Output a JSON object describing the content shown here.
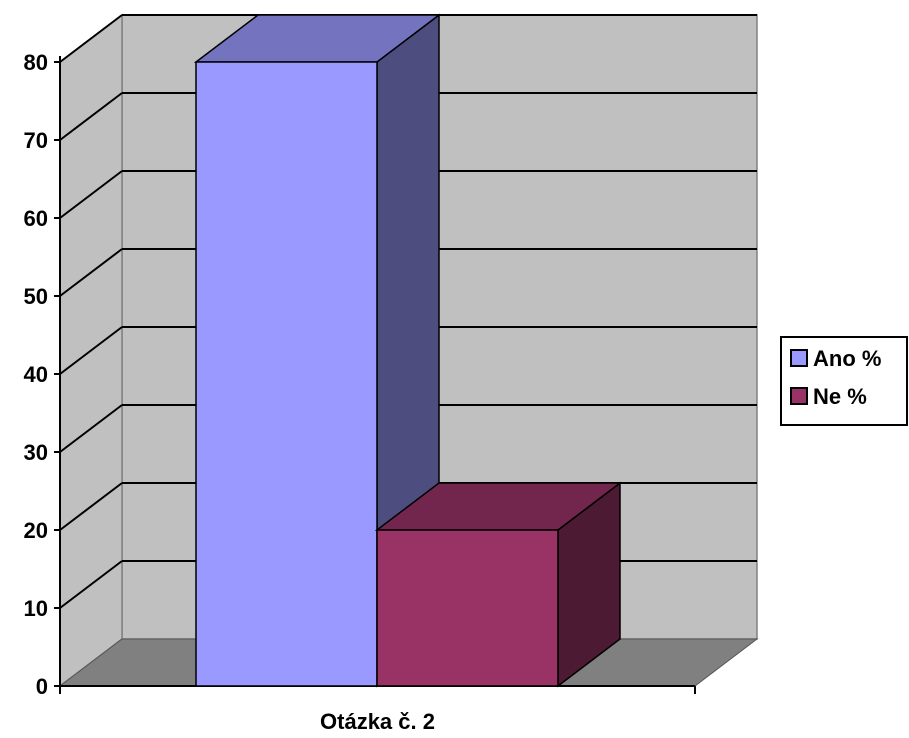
{
  "chart_data": {
    "type": "bar",
    "style": "3d-clustered-column",
    "categories": [
      "Otázka č. 2"
    ],
    "series": [
      {
        "name": "Ano %",
        "values": [
          80
        ],
        "color": "#9999ff"
      },
      {
        "name": "Ne %",
        "values": [
          20
        ],
        "color": "#993366"
      }
    ],
    "yticks": [
      "0",
      "10",
      "20",
      "30",
      "40",
      "50",
      "60",
      "70",
      "80"
    ],
    "ylim": [
      0,
      80
    ],
    "grid": true,
    "legend": "right",
    "wall_color": "#c0c0c0",
    "floor_color": "#808080"
  }
}
